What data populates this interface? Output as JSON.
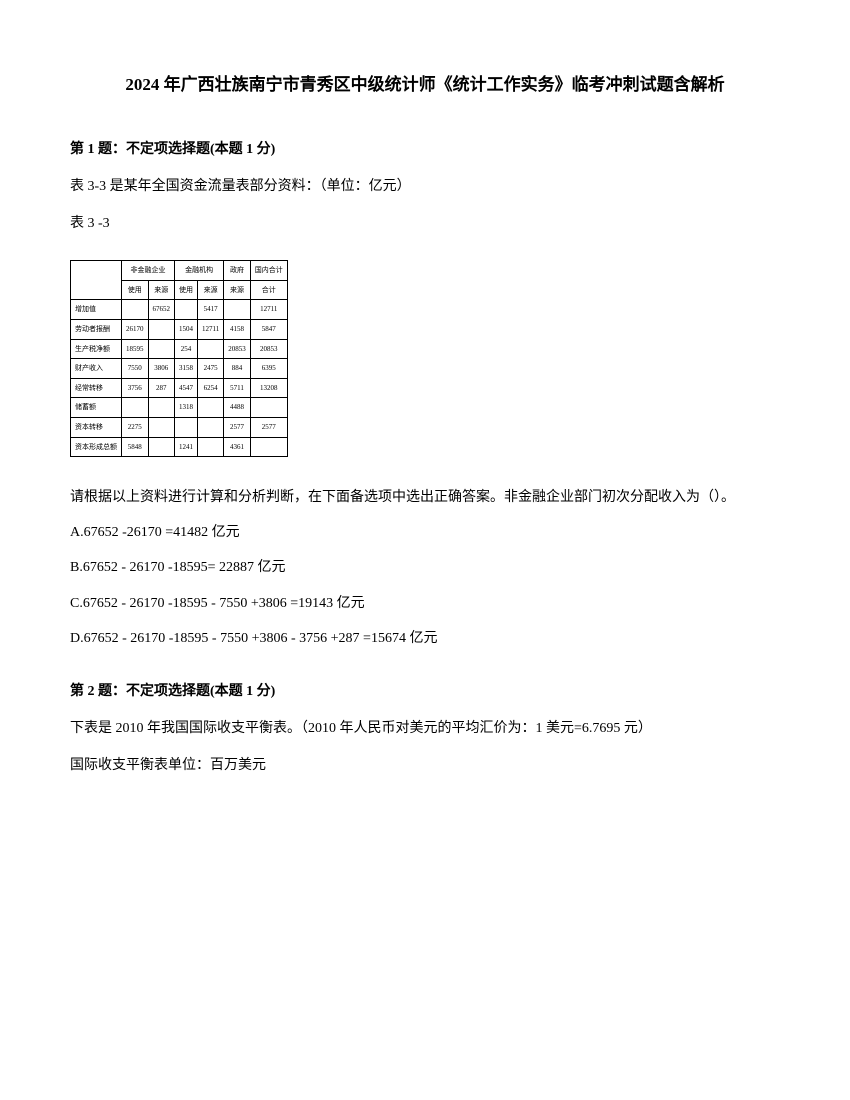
{
  "title": "2024 年广西壮族南宁市青秀区中级统计师《统计工作实务》临考冲刺试题含解析",
  "q1": {
    "header": "第 1 题：不定项选择题(本题 1 分)",
    "intro": "表 3-3 是某年全国资金流量表部分资料：（单位：亿元）",
    "tableLabel": "表 3 -3",
    "analysis": "请根据以上资料进行计算和分析判断，在下面备选项中选出正确答案。非金融企业部门初次分配收入为（）。",
    "optA": "A.67652 -26170 =41482 亿元",
    "optB": "B.67652 - 26170 -18595= 22887 亿元",
    "optC": "C.67652 - 26170 -18595 - 7550 +3806 =19143 亿元",
    "optD": "D.67652 - 26170 -18595 - 7550 +3806 - 3756 +287 =15674 亿元"
  },
  "q2": {
    "header": "第 2 题：不定项选择题(本题 1 分)",
    "line1": "下表是 2010 年我国国际收支平衡表。（2010 年人民币对美元的平均汇价为：1 美元=6.7695 元）",
    "line2": "国际收支平衡表单位：百万美元"
  },
  "table": {
    "headers": {
      "h1": "非金融企业",
      "h2": "金融机构",
      "h3": "政府",
      "h4": "国内合计",
      "sub_use": "使用",
      "sub_source": "来源",
      "sub_total": "合计"
    },
    "rows": [
      {
        "label": "增加值",
        "c1": "",
        "c2": "67652",
        "c3": "",
        "c4": "5417",
        "c5": "",
        "c6": "12711"
      },
      {
        "label": "劳动者报酬",
        "c1": "26170",
        "c2": "",
        "c3": "1504",
        "c4": "12711",
        "c5": "4158",
        "c6": "5847"
      },
      {
        "label": "生产税净额",
        "c1": "18595",
        "c2": "",
        "c3": "254",
        "c4": "",
        "c5": "20853",
        "c6": "20853"
      },
      {
        "label": "财产收入",
        "c1": "7550",
        "c2": "3806",
        "c3": "3158",
        "c4": "2475",
        "c5": "884",
        "c6": "6395"
      },
      {
        "label": "经常转移",
        "c1": "3756",
        "c2": "287",
        "c3": "4547",
        "c4": "6254",
        "c5": "5711",
        "c6": "13208"
      },
      {
        "label": "储蓄额",
        "c1": "",
        "c2": "",
        "c3": "1318",
        "c4": "",
        "c5": "4488",
        "c6": ""
      },
      {
        "label": "资本转移",
        "c1": "2275",
        "c2": "",
        "c3": "",
        "c4": "",
        "c5": "2577",
        "c6": "2577"
      },
      {
        "label": "资本形成总额",
        "c1": "5848",
        "c2": "",
        "c3": "1241",
        "c4": "",
        "c5": "4361",
        "c6": ""
      }
    ]
  }
}
